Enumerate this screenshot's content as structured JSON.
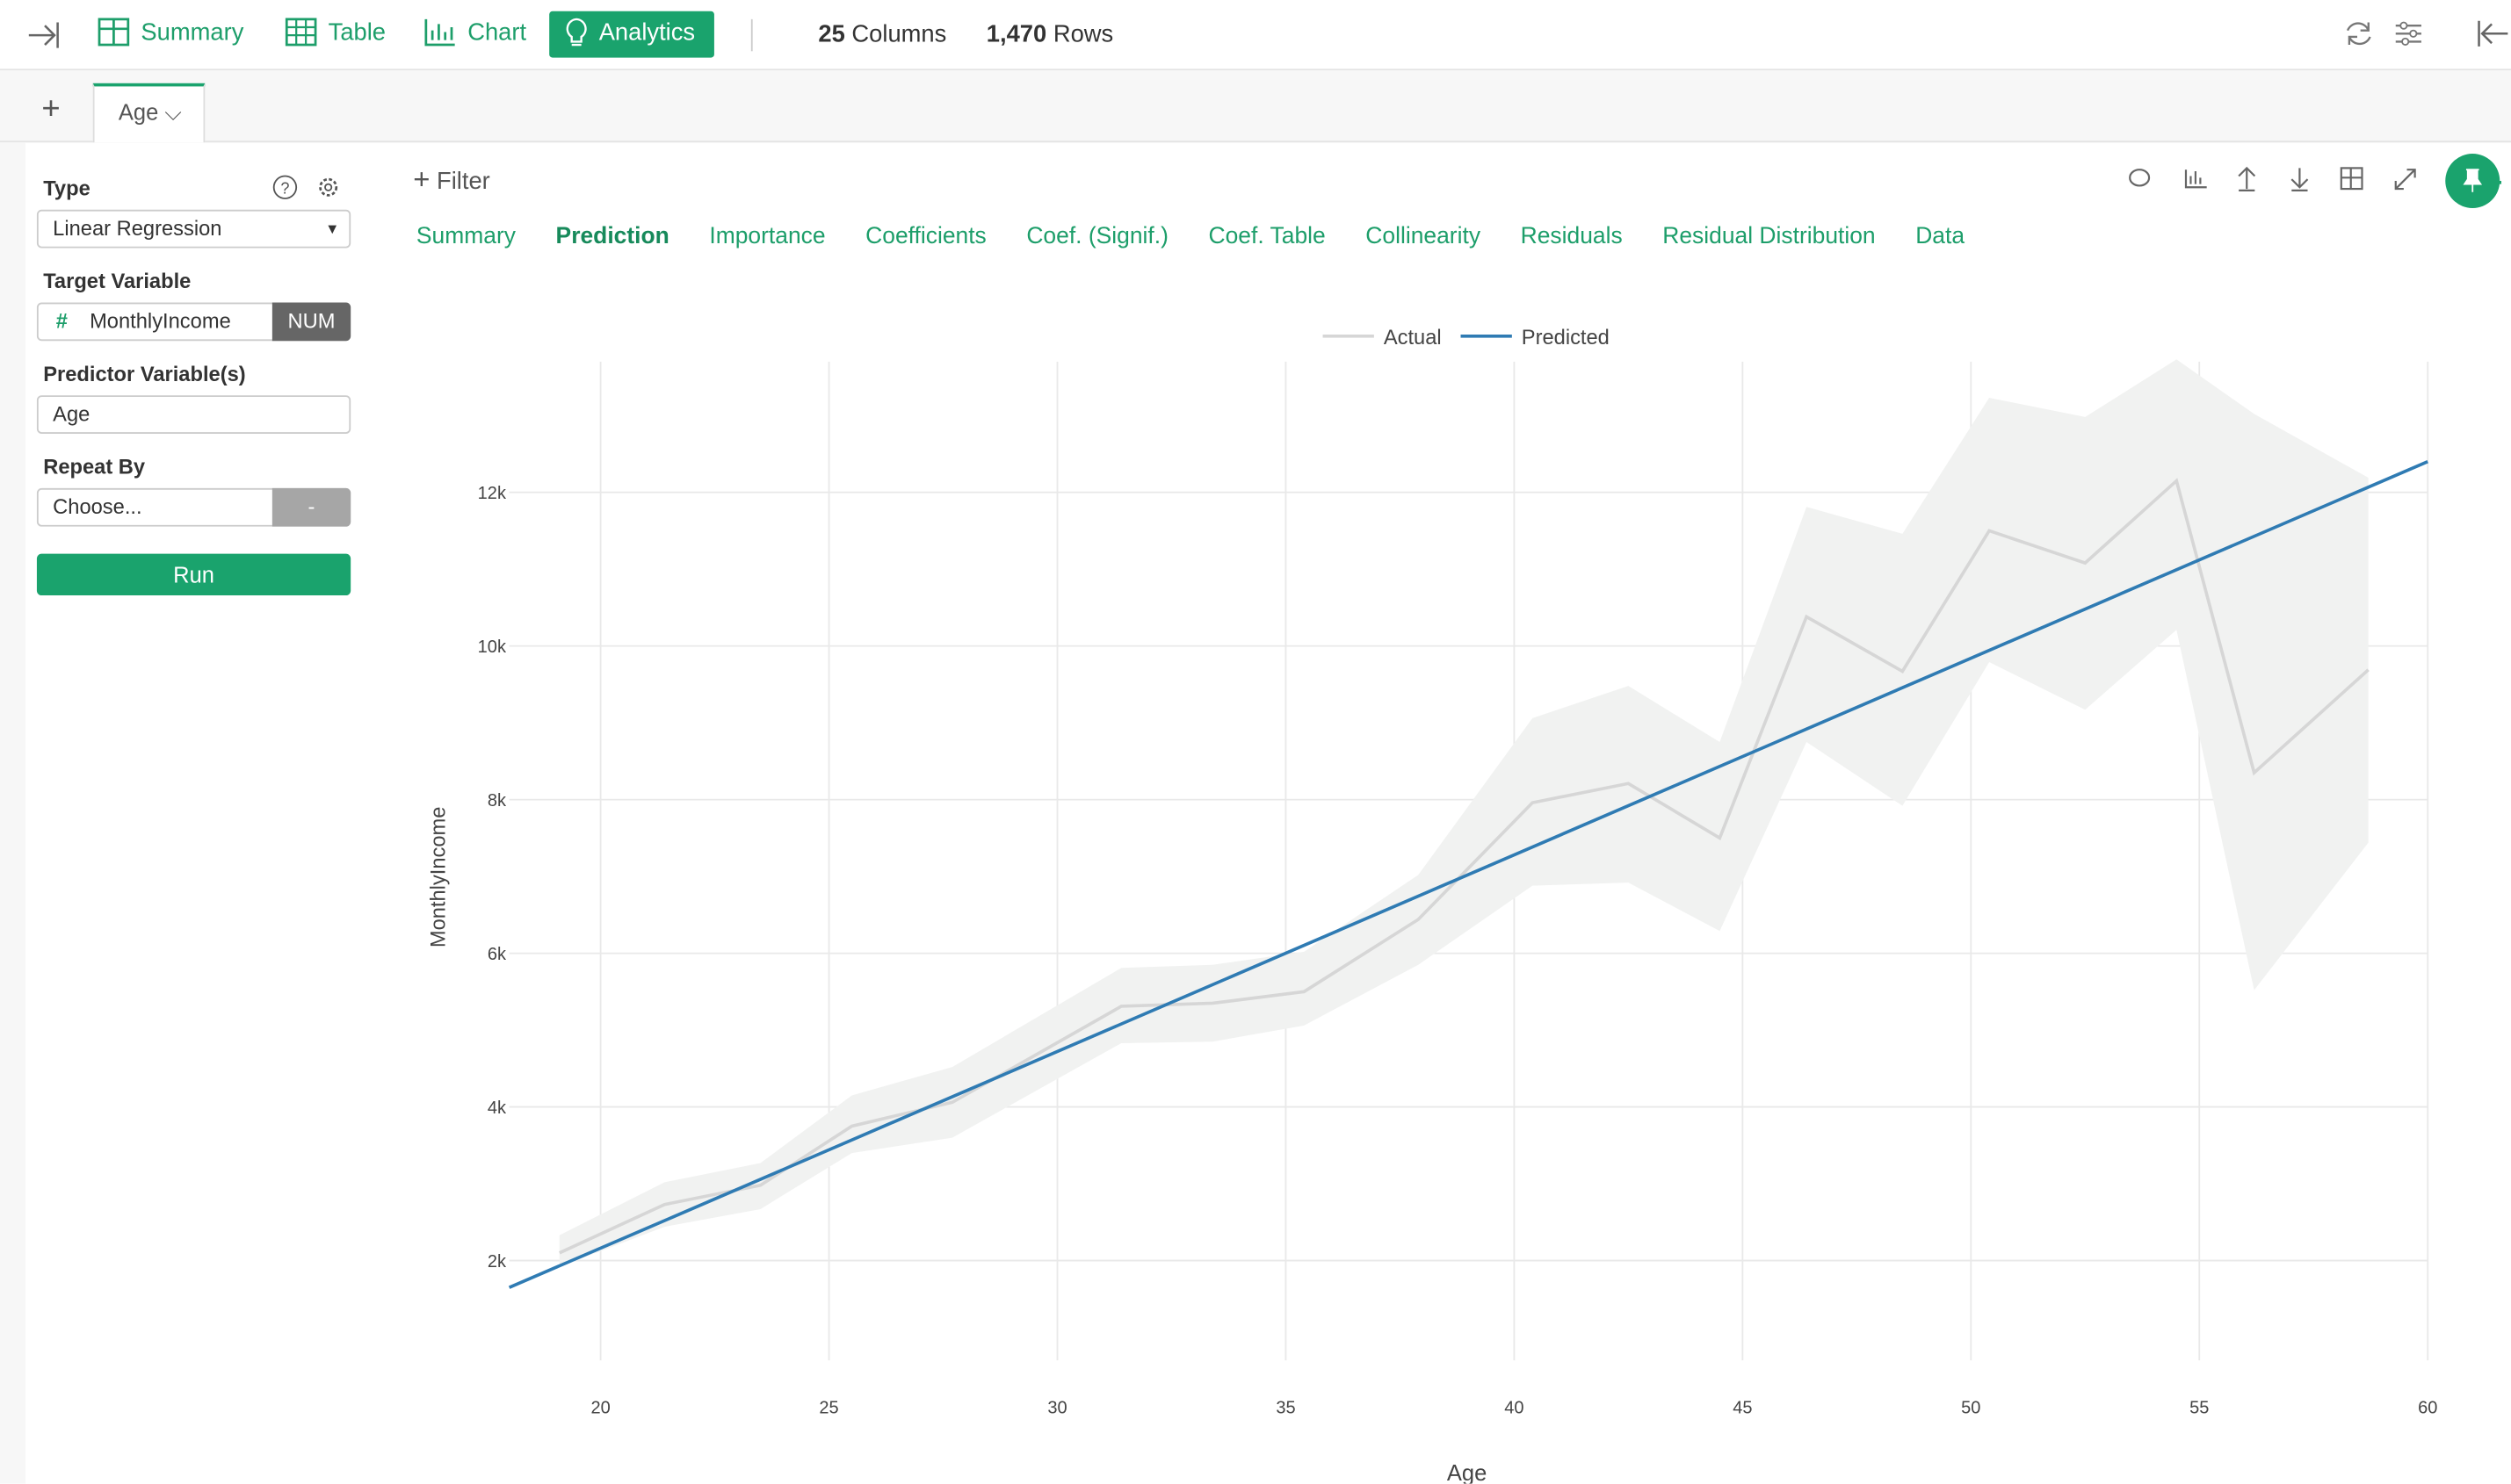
{
  "toolbar": {
    "items": [
      "Summary",
      "Table",
      "Chart",
      "Analytics"
    ],
    "columns_count": "25",
    "columns_label": "Columns",
    "rows_count": "1,470",
    "rows_label": "Rows"
  },
  "tabs": [
    "Age"
  ],
  "sidebar": {
    "type_label": "Type",
    "type_value": "Linear Regression",
    "target_label": "Target Variable",
    "target_value": "MonthlyIncome",
    "target_badge": "NUM",
    "predictor_label": "Predictor Variable(s)",
    "predictor_value": "Age",
    "repeat_label": "Repeat By",
    "repeat_value": "Choose...",
    "repeat_button": "-",
    "run": "Run"
  },
  "filter": "Filter",
  "subtabs": [
    "Summary",
    "Prediction",
    "Importance",
    "Coefficients",
    "Coef. (Signif.)",
    "Coef. Table",
    "Collinearity",
    "Residuals",
    "Residual Distribution",
    "Data"
  ],
  "chart_data": {
    "type": "line",
    "x_label": "Age",
    "y_label": "MonthlyIncome",
    "xlim": [
      18,
      60
    ],
    "xticks": [
      20,
      25,
      30,
      35,
      40,
      45,
      50,
      55,
      60
    ],
    "ylim": [
      700,
      13700
    ],
    "yticks": [
      {
        "value": 2000,
        "label": "2k"
      },
      {
        "value": 4000,
        "label": "4k"
      },
      {
        "value": 6000,
        "label": "6k"
      },
      {
        "value": 8000,
        "label": "8k"
      },
      {
        "value": 10000,
        "label": "10k"
      },
      {
        "value": 12000,
        "label": "12k"
      }
    ],
    "grid": true,
    "legend": "top",
    "series": [
      {
        "name": "Actual",
        "color": "#d6d6d6",
        "band_color": "#f1f2f1",
        "x": [
          19.1,
          21.4,
          23.5,
          25.5,
          27.7,
          31.4,
          33.4,
          35.4,
          37.9,
          40.4,
          42.5,
          44.5,
          46.4,
          48.5,
          50.4,
          52.5,
          54.5,
          56.2,
          58.7
        ],
        "values": [
          2100,
          2730,
          2980,
          3750,
          4060,
          5310,
          5350,
          5500,
          6440,
          7960,
          8210,
          7500,
          10380,
          9670,
          11500,
          11080,
          12150,
          8350,
          9690
        ],
        "upper": [
          2330,
          3020,
          3270,
          4150,
          4520,
          5810,
          5850,
          6020,
          7020,
          9060,
          9480,
          8750,
          11810,
          11460,
          13230,
          12980,
          13730,
          13020,
          12190
        ],
        "lower": [
          1920,
          2440,
          2670,
          3400,
          3600,
          4830,
          4850,
          5060,
          5850,
          6880,
          6920,
          6290,
          8750,
          7920,
          9790,
          9170,
          10210,
          5520,
          7440
        ]
      },
      {
        "name": "Predicted",
        "color": "#2f7bb3",
        "x": [
          18,
          60
        ],
        "values": [
          1650,
          12400
        ]
      }
    ]
  }
}
